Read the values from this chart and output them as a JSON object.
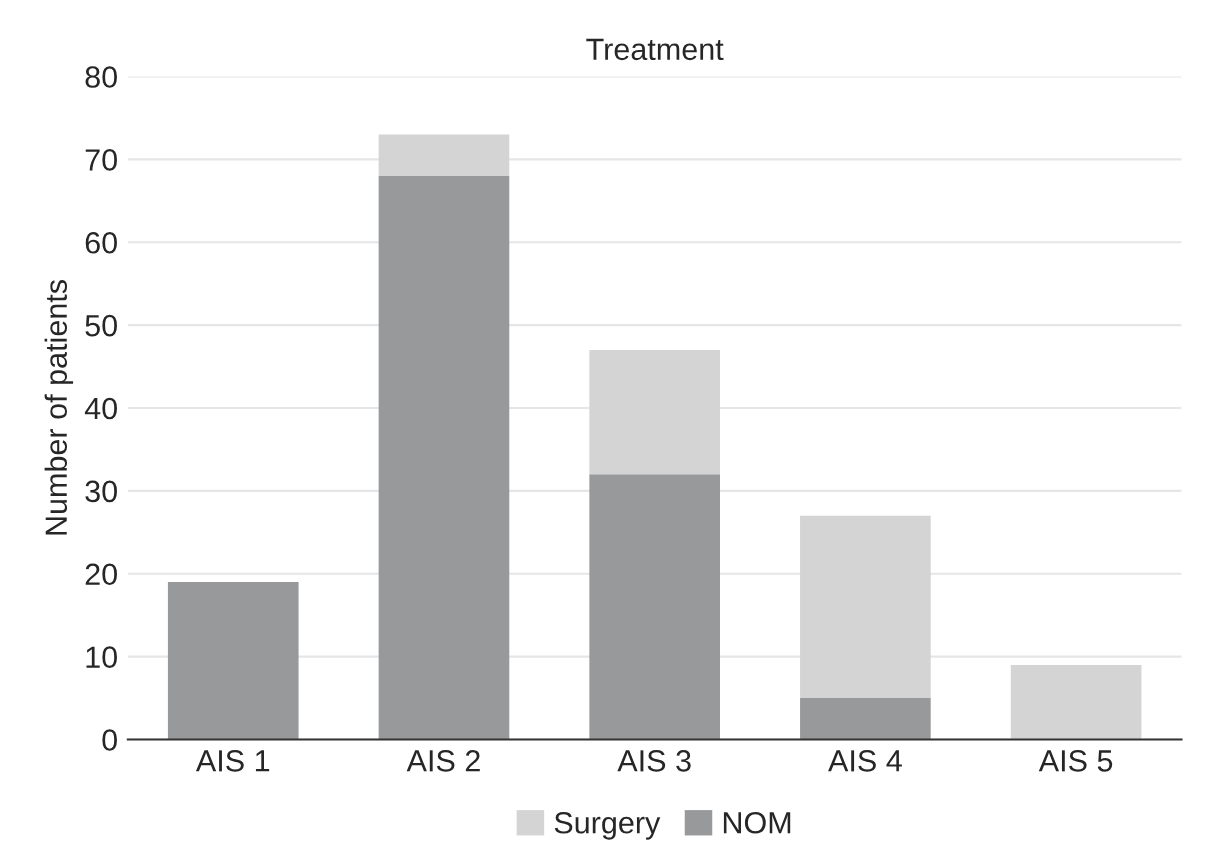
{
  "chart_data": {
    "type": "bar",
    "title": "Treatment",
    "ylabel": "Number of patients",
    "categories": [
      "AIS 1",
      "AIS 2",
      "AIS 3",
      "AIS 4",
      "AIS 5"
    ],
    "stacked": true,
    "series": [
      {
        "name": "NOM",
        "color": "#98999b",
        "values": [
          19,
          68,
          32,
          5,
          null
        ]
      },
      {
        "name": "Surgery",
        "color": "#d4d4d4",
        "values": [
          null,
          5,
          15,
          22,
          9
        ]
      }
    ],
    "ylim": [
      0,
      80
    ],
    "yticks": [
      0,
      10,
      20,
      30,
      40,
      50,
      60,
      70,
      80
    ],
    "grid": "y",
    "legend": "bottom"
  }
}
